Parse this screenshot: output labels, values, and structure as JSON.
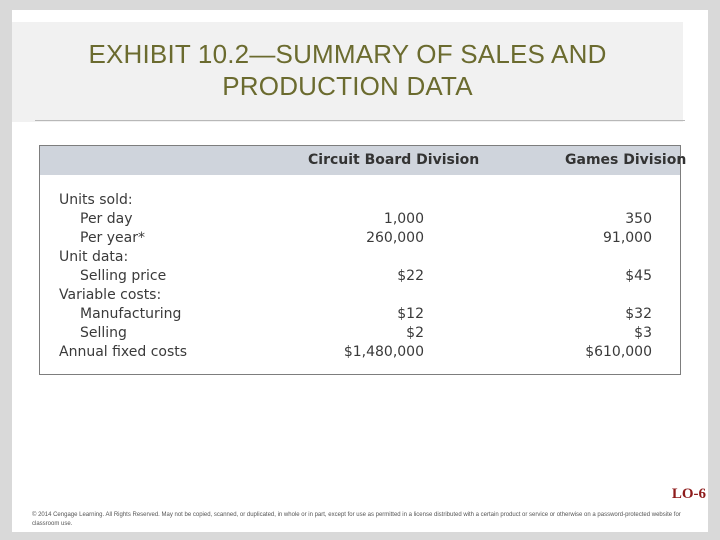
{
  "slide": {
    "title_line1": "EXHIBIT 10.2—SUMMARY OF SALES AND",
    "title_line2": "PRODUCTION DATA",
    "lo_tag": "LO-6",
    "copyright": "© 2014 Cengage Learning. All Rights Reserved. May not be copied, scanned, or duplicated, in whole or in part, except for use as permitted in a license distributed with a certain product or service or otherwise on a password-protected website for classroom use."
  },
  "table": {
    "headers": [
      "Circuit Board Division",
      "Games Division"
    ],
    "rows": [
      {
        "label": "Units sold:",
        "v1": "",
        "v2": ""
      },
      {
        "label": "Per day",
        "v1": "1,000",
        "v2": "350"
      },
      {
        "label": "Per year*",
        "v1": "260,000",
        "v2": "91,000"
      },
      {
        "label": "Unit data:",
        "v1": "",
        "v2": ""
      },
      {
        "label": "Selling price",
        "v1": "$22",
        "v2": "$45"
      },
      {
        "label": "Variable costs:",
        "v1": "",
        "v2": ""
      },
      {
        "label": "Manufacturing",
        "v1": "$12",
        "v2": "$32"
      },
      {
        "label": "Selling",
        "v1": "$2",
        "v2": "$3"
      },
      {
        "label": "Annual fixed costs",
        "v1": "$1,480,000",
        "v2": "$610,000"
      }
    ]
  },
  "colors": {
    "title": "#6b6b2f",
    "header_band": "#cfd4dc",
    "lo_tag": "#8e1b1b"
  }
}
